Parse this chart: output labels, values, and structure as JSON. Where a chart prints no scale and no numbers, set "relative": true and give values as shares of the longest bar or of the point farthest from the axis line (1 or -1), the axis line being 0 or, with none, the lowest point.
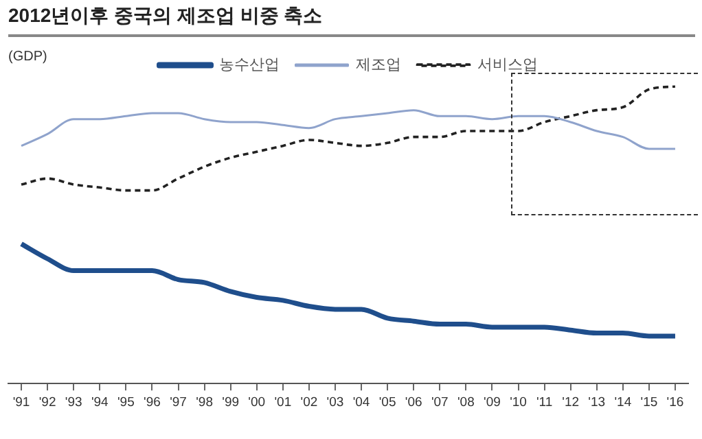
{
  "chart_data": {
    "type": "line",
    "title": "2012년이후 중국의 제조업 비중 축소",
    "ylabel": "(GDP)",
    "relative": true,
    "legend": "top",
    "grid": false,
    "marker": "none",
    "categories": [
      "'91",
      "'92",
      "'93",
      "'94",
      "'95",
      "'96",
      "'97",
      "'98",
      "'99",
      "'00",
      "'01",
      "'02",
      "'03",
      "'04",
      "'05",
      "'06",
      "'07",
      "'08",
      "'09",
      "'10",
      "'11",
      "'12",
      "'13",
      "'14",
      "'15",
      "'16"
    ],
    "series": [
      {
        "name": "농수산업",
        "color": "#1f4e8c",
        "line_style": "solid",
        "values": [
          0.47,
          0.42,
          0.38,
          0.38,
          0.38,
          0.38,
          0.35,
          0.34,
          0.31,
          0.29,
          0.28,
          0.26,
          0.25,
          0.25,
          0.22,
          0.21,
          0.2,
          0.2,
          0.19,
          0.19,
          0.19,
          0.18,
          0.17,
          0.17,
          0.16,
          0.16
        ]
      },
      {
        "name": "제조업",
        "color": "#8fa3cc",
        "line_style": "solid",
        "values": [
          0.8,
          0.84,
          0.89,
          0.89,
          0.9,
          0.91,
          0.91,
          0.89,
          0.88,
          0.88,
          0.87,
          0.86,
          0.89,
          0.9,
          0.91,
          0.92,
          0.9,
          0.9,
          0.89,
          0.9,
          0.9,
          0.88,
          0.85,
          0.83,
          0.79,
          0.79
        ]
      },
      {
        "name": "서비스업",
        "color": "#222222",
        "line_style": "dashed",
        "values": [
          0.67,
          0.69,
          0.67,
          0.66,
          0.65,
          0.65,
          0.69,
          0.73,
          0.76,
          0.78,
          0.8,
          0.82,
          0.81,
          0.8,
          0.81,
          0.83,
          0.83,
          0.85,
          0.85,
          0.85,
          0.88,
          0.9,
          0.92,
          0.93,
          0.99,
          1
        ]
      }
    ]
  }
}
